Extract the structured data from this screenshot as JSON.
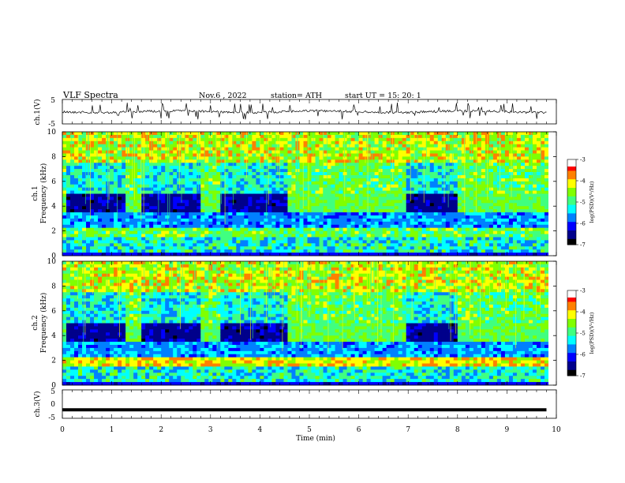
{
  "header": {
    "title": "VLF  Spectra",
    "date": "Nov.6  , 2022",
    "station": "station= ATH",
    "start_ut": "start  UT  =    15: 20: 1"
  },
  "chart_data": [
    {
      "type": "line",
      "panel": "ch1-waveform",
      "ylabel": "ch.1(V)",
      "ylim": [
        -5,
        5
      ],
      "yticks": [
        "5",
        "-5"
      ],
      "xlim": [
        0,
        10
      ],
      "series": [
        {
          "values_description_free": true
        }
      ]
    },
    {
      "type": "heatmap",
      "panel": "ch1-spectrogram",
      "ylabel": "ch.1  Frequency  (kHz)",
      "ylabel_line1": "ch.1",
      "ylabel_line2": "Frequency  (kHz)",
      "ylim": [
        0,
        10
      ],
      "yticks": [
        "0",
        "2",
        "4",
        "6",
        "8",
        "10"
      ],
      "xlim": [
        0,
        10
      ],
      "dark_intervals_min": [
        [
          0.1,
          1.3
        ],
        [
          1.6,
          2.8
        ],
        [
          3.2,
          4.6
        ],
        [
          7.0,
          8.0
        ]
      ],
      "colorbar": {
        "label": "log(PSD)(V²/Hz)",
        "ticks": [
          "-3",
          "-4",
          "-5",
          "-6",
          "-7"
        ],
        "range": [
          -7,
          -3
        ]
      }
    },
    {
      "type": "heatmap",
      "panel": "ch2-spectrogram",
      "ylabel": "ch.2  Frequency  (kHz)",
      "ylabel_line1": "ch.2",
      "ylabel_line2": "Frequency  (kHz)",
      "ylim": [
        0,
        10
      ],
      "yticks": [
        "0",
        "2",
        "4",
        "6",
        "8",
        "10"
      ],
      "xlim": [
        0,
        10
      ],
      "dark_intervals_min": [
        [
          0.1,
          1.3
        ],
        [
          1.6,
          2.8
        ],
        [
          3.2,
          4.6
        ],
        [
          7.0,
          8.0
        ]
      ],
      "colorbar": {
        "label": "log(PSD)(V²/Hz)",
        "ticks": [
          "-3",
          "-4",
          "-5",
          "-6",
          "-7"
        ],
        "range": [
          -7,
          -3
        ]
      }
    },
    {
      "type": "line",
      "panel": "ch3-waveform",
      "ylabel": "ch.3(V)",
      "ylim": [
        -5,
        5
      ],
      "yticks": [
        "5",
        "0",
        "-5"
      ],
      "xlim": [
        0,
        10
      ],
      "xlabel": "Time  (min)",
      "xticks": [
        "0",
        "1",
        "2",
        "3",
        "4",
        "5",
        "6",
        "7",
        "8",
        "9",
        "10"
      ],
      "series": [
        {
          "level": -2,
          "x": [
            0,
            9.8
          ]
        }
      ]
    }
  ],
  "colors": {
    "colormap": [
      "#000000",
      "#00008b",
      "#0000ff",
      "#0080ff",
      "#00ffff",
      "#40ff80",
      "#80ff00",
      "#ffff00",
      "#ff8000",
      "#ff0000",
      "#ffffff"
    ]
  }
}
